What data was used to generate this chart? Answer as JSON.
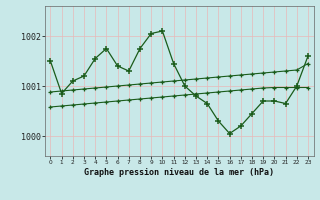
{
  "title": "Graphe pression niveau de la mer (hPa)",
  "bg_color": "#c8e8e8",
  "grid_color": "#e8b8b8",
  "line_color": "#1a5c1a",
  "x_labels": [
    "0",
    "1",
    "2",
    "3",
    "4",
    "5",
    "6",
    "7",
    "8",
    "9",
    "10",
    "11",
    "12",
    "13",
    "14",
    "15",
    "16",
    "17",
    "18",
    "19",
    "20",
    "21",
    "22",
    "23"
  ],
  "ylim": [
    999.6,
    1002.6
  ],
  "yticks": [
    1000,
    1001,
    1002
  ],
  "main_line": [
    1001.5,
    1000.85,
    1001.1,
    1001.2,
    1001.55,
    1001.75,
    1001.4,
    1001.3,
    1001.75,
    1002.05,
    1002.1,
    1001.45,
    1001.0,
    1000.8,
    1000.65,
    1000.3,
    1000.05,
    1000.2,
    1000.45,
    1000.7,
    1000.7,
    1000.65,
    1001.0,
    1001.6
  ],
  "smooth_line1": [
    1000.88,
    1000.9,
    1000.92,
    1000.94,
    1000.96,
    1000.98,
    1001.0,
    1001.02,
    1001.04,
    1001.06,
    1001.08,
    1001.1,
    1001.12,
    1001.14,
    1001.16,
    1001.18,
    1001.2,
    1001.22,
    1001.24,
    1001.26,
    1001.28,
    1001.3,
    1001.32,
    1001.45
  ],
  "smooth_line2": [
    1000.58,
    1000.6,
    1000.62,
    1000.64,
    1000.66,
    1000.68,
    1000.7,
    1000.72,
    1000.74,
    1000.76,
    1000.78,
    1000.8,
    1000.82,
    1000.84,
    1000.86,
    1000.88,
    1000.9,
    1000.92,
    1000.94,
    1000.96,
    1000.97,
    1000.97,
    1000.97,
    1000.97
  ]
}
